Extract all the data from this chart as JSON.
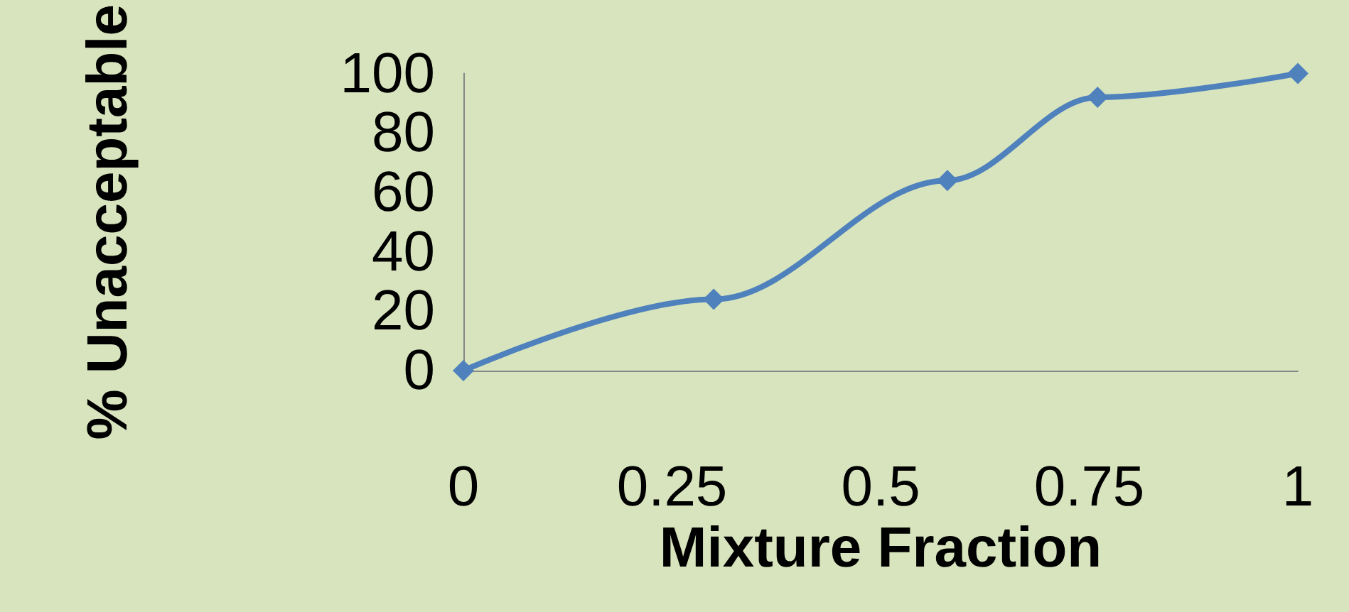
{
  "chart_data": {
    "type": "line",
    "xlabel": "Mixture Fraction",
    "ylabel": "% Unacceptable",
    "x": [
      0,
      0.3,
      0.58,
      0.76,
      1
    ],
    "series": [
      {
        "color": "#4f81bd",
        "values": [
          0,
          24,
          64,
          92,
          100
        ]
      }
    ],
    "xlim": [
      0,
      1
    ],
    "xticks": [
      0,
      0.25,
      0.5,
      0.75,
      1
    ],
    "ylim": [
      0,
      100
    ],
    "yticks": [
      0,
      20,
      40,
      60,
      80,
      100
    ],
    "grid": false,
    "marker": "diamond",
    "line_style": "solid"
  }
}
